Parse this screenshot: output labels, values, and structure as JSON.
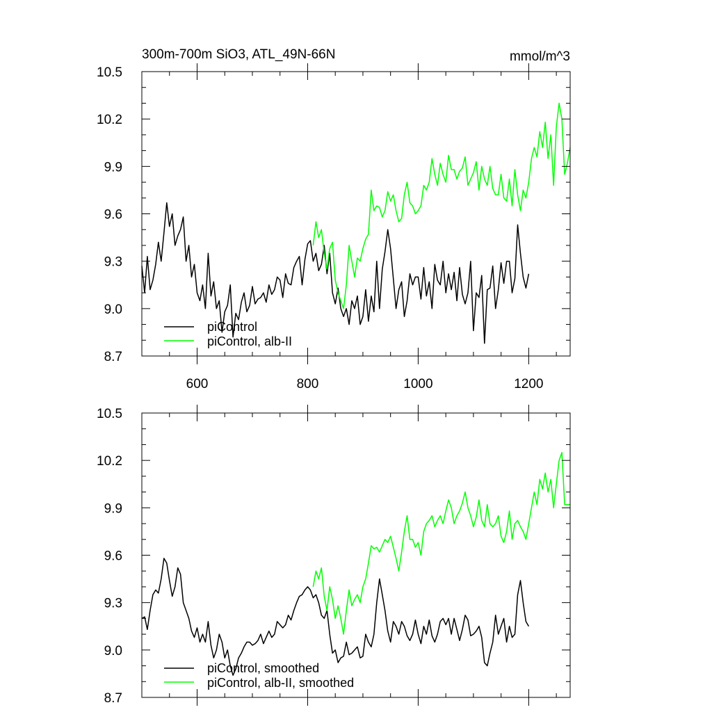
{
  "colors": {
    "series_black": "#000000",
    "series_green": "#00ff00",
    "axis": "#000000",
    "background": "#ffffff"
  },
  "chart_data": [
    {
      "type": "line",
      "title_left": "300m-700m SiO3, ATL_49N-66N",
      "title_right": "mmol/m^3",
      "xlabel": "",
      "ylabel": "",
      "xlim": [
        500,
        1275
      ],
      "ylim": [
        8.7,
        10.5
      ],
      "xticks": [
        600,
        800,
        1000,
        1200
      ],
      "xtick_labels": [
        "600",
        "800",
        "1000",
        "1200"
      ],
      "yticks": [
        8.7,
        9.0,
        9.3,
        9.6,
        9.9,
        10.2,
        10.5
      ],
      "ytick_labels": [
        "8.7",
        "9.0",
        "9.3",
        "9.6",
        "9.9",
        "10.2",
        "10.5"
      ],
      "grid": false,
      "legend_position": "bottom-left",
      "series": [
        {
          "name": "piControl",
          "color": "#000000",
          "x": [
            500,
            505,
            510,
            515,
            520,
            525,
            530,
            535,
            540,
            545,
            550,
            555,
            560,
            565,
            570,
            575,
            580,
            585,
            590,
            595,
            600,
            605,
            610,
            615,
            620,
            625,
            630,
            635,
            640,
            645,
            650,
            655,
            660,
            665,
            670,
            675,
            680,
            685,
            690,
            695,
            700,
            705,
            710,
            715,
            720,
            725,
            730,
            735,
            740,
            745,
            750,
            755,
            760,
            765,
            770,
            775,
            780,
            785,
            790,
            795,
            800,
            805,
            810,
            815,
            820,
            825,
            830,
            835,
            840,
            845,
            850,
            855,
            860,
            865,
            870,
            875,
            880,
            885,
            890,
            895,
            900,
            905,
            910,
            915,
            920,
            925,
            930,
            935,
            940,
            945,
            950,
            955,
            960,
            965,
            970,
            975,
            980,
            985,
            990,
            995,
            1000,
            1005,
            1010,
            1015,
            1020,
            1025,
            1030,
            1035,
            1040,
            1045,
            1050,
            1055,
            1060,
            1065,
            1070,
            1075,
            1080,
            1085,
            1090,
            1095,
            1100,
            1105,
            1110,
            1115,
            1120,
            1125,
            1130,
            1135,
            1140,
            1145,
            1150,
            1155,
            1160,
            1165,
            1170,
            1175,
            1180,
            1185,
            1190,
            1195,
            1200
          ],
          "y": [
            9.27,
            9.1,
            9.33,
            9.12,
            9.18,
            9.28,
            9.42,
            9.3,
            9.48,
            9.67,
            9.52,
            9.6,
            9.4,
            9.46,
            9.5,
            9.58,
            9.3,
            9.4,
            9.2,
            9.28,
            9.1,
            9.05,
            9.15,
            9.0,
            9.35,
            9.08,
            9.17,
            9.0,
            9.05,
            8.85,
            8.98,
            9.02,
            9.15,
            8.82,
            8.97,
            8.93,
            9.04,
            9.1,
            8.98,
            9.02,
            9.14,
            9.03,
            9.06,
            9.07,
            9.1,
            9.04,
            9.15,
            9.09,
            9.12,
            9.2,
            9.18,
            9.07,
            9.22,
            9.16,
            9.15,
            9.26,
            9.3,
            9.33,
            9.15,
            9.31,
            9.41,
            9.43,
            9.3,
            9.35,
            9.24,
            9.28,
            9.4,
            9.22,
            9.35,
            9.1,
            9.03,
            9.13,
            9.0,
            8.95,
            9.0,
            8.9,
            9.05,
            9.0,
            9.08,
            8.9,
            8.95,
            9.12,
            8.92,
            9.08,
            8.98,
            9.3,
            9.0,
            9.25,
            9.36,
            9.5,
            9.38,
            9.19,
            9.0,
            9.12,
            9.17,
            8.95,
            9.05,
            9.22,
            9.15,
            9.2,
            9.2,
            9.06,
            9.26,
            9.08,
            9.17,
            9.0,
            9.28,
            9.18,
            9.15,
            9.3,
            9.1,
            9.22,
            9.12,
            9.23,
            9.05,
            9.26,
            9.09,
            9.03,
            9.1,
            9.3,
            8.86,
            9.1,
            9.07,
            9.21,
            8.78,
            9.12,
            9.13,
            9.27,
            9.0,
            9.12,
            9.29,
            9.16,
            9.3,
            9.3,
            9.1,
            9.19,
            9.53,
            9.35,
            9.2,
            9.13,
            9.22
          ]
        },
        {
          "name": "piControl, alb-II",
          "color": "#00ff00",
          "x": [
            810,
            815,
            820,
            825,
            830,
            835,
            840,
            845,
            850,
            855,
            860,
            865,
            870,
            875,
            880,
            885,
            890,
            895,
            900,
            905,
            910,
            915,
            920,
            925,
            930,
            935,
            940,
            945,
            950,
            955,
            960,
            965,
            970,
            975,
            980,
            985,
            990,
            995,
            1000,
            1005,
            1010,
            1015,
            1020,
            1025,
            1030,
            1035,
            1040,
            1045,
            1050,
            1055,
            1060,
            1065,
            1070,
            1075,
            1080,
            1085,
            1090,
            1095,
            1100,
            1105,
            1110,
            1115,
            1120,
            1125,
            1130,
            1135,
            1140,
            1145,
            1150,
            1155,
            1160,
            1165,
            1170,
            1175,
            1180,
            1185,
            1190,
            1195,
            1200,
            1205,
            1210,
            1215,
            1220,
            1225,
            1230,
            1235,
            1240,
            1245,
            1250,
            1255,
            1260,
            1265,
            1270,
            1275
          ],
          "y": [
            9.4,
            9.55,
            9.45,
            9.5,
            9.35,
            9.25,
            9.38,
            9.42,
            9.18,
            9.1,
            9.05,
            9.0,
            9.15,
            9.4,
            9.3,
            9.2,
            9.32,
            9.3,
            9.38,
            9.44,
            9.47,
            9.75,
            9.62,
            9.65,
            9.64,
            9.58,
            9.62,
            9.74,
            9.68,
            9.72,
            9.62,
            9.55,
            9.57,
            9.72,
            9.8,
            9.67,
            9.65,
            9.6,
            9.62,
            9.65,
            9.78,
            9.75,
            9.8,
            9.95,
            9.85,
            9.78,
            9.92,
            9.85,
            9.8,
            9.97,
            9.88,
            9.88,
            9.82,
            9.87,
            9.89,
            9.96,
            9.78,
            9.82,
            9.86,
            9.93,
            9.75,
            9.9,
            9.82,
            9.78,
            9.9,
            9.76,
            9.72,
            9.72,
            9.85,
            9.7,
            9.68,
            9.82,
            9.65,
            9.88,
            9.72,
            9.62,
            9.75,
            9.7,
            9.8,
            9.95,
            10.02,
            9.96,
            10.12,
            10.02,
            10.18,
            9.95,
            10.1,
            9.78,
            10.15,
            10.3,
            10.2,
            9.85,
            9.92,
            10.02
          ]
        }
      ]
    },
    {
      "type": "line",
      "xlabel": "",
      "ylabel": "",
      "xlim": [
        500,
        1275
      ],
      "ylim": [
        8.7,
        10.5
      ],
      "xticks": [
        600,
        800,
        1000,
        1200
      ],
      "yticks": [
        8.7,
        9.0,
        9.3,
        9.6,
        9.9,
        10.2,
        10.5
      ],
      "ytick_labels": [
        "8.7",
        "9.0",
        "9.3",
        "9.6",
        "9.9",
        "10.2",
        "10.5"
      ],
      "grid": false,
      "legend_position": "bottom-left",
      "series": [
        {
          "name": "piControl, smoothed",
          "color": "#000000",
          "x": [
            500,
            505,
            510,
            515,
            520,
            525,
            530,
            535,
            540,
            545,
            550,
            555,
            560,
            565,
            570,
            575,
            580,
            585,
            590,
            595,
            600,
            605,
            610,
            615,
            620,
            625,
            630,
            635,
            640,
            645,
            650,
            655,
            660,
            665,
            670,
            675,
            680,
            685,
            690,
            695,
            700,
            705,
            710,
            715,
            720,
            725,
            730,
            735,
            740,
            745,
            750,
            755,
            760,
            765,
            770,
            775,
            780,
            785,
            790,
            795,
            800,
            805,
            810,
            815,
            820,
            825,
            830,
            835,
            840,
            845,
            850,
            855,
            860,
            865,
            870,
            875,
            880,
            885,
            890,
            895,
            900,
            905,
            910,
            915,
            920,
            925,
            930,
            935,
            940,
            945,
            950,
            955,
            960,
            965,
            970,
            975,
            980,
            985,
            990,
            995,
            1000,
            1005,
            1010,
            1015,
            1020,
            1025,
            1030,
            1035,
            1040,
            1045,
            1050,
            1055,
            1060,
            1065,
            1070,
            1075,
            1080,
            1085,
            1090,
            1095,
            1100,
            1105,
            1110,
            1115,
            1120,
            1125,
            1130,
            1135,
            1140,
            1145,
            1150,
            1155,
            1160,
            1165,
            1170,
            1175,
            1180,
            1185,
            1190,
            1195,
            1200
          ],
          "y": [
            9.2,
            9.21,
            9.13,
            9.25,
            9.35,
            9.38,
            9.36,
            9.45,
            9.58,
            9.55,
            9.44,
            9.34,
            9.4,
            9.52,
            9.48,
            9.3,
            9.25,
            9.2,
            9.12,
            9.08,
            9.14,
            9.05,
            9.1,
            9.05,
            9.18,
            9.03,
            8.95,
            9.0,
            9.1,
            9.05,
            8.95,
            9.0,
            8.9,
            8.84,
            8.88,
            8.95,
            8.98,
            9.02,
            9.05,
            9.05,
            9.03,
            9.04,
            9.06,
            9.1,
            9.04,
            9.08,
            9.12,
            9.08,
            9.1,
            9.18,
            9.16,
            9.14,
            9.16,
            9.22,
            9.19,
            9.25,
            9.3,
            9.34,
            9.35,
            9.38,
            9.4,
            9.38,
            9.33,
            9.35,
            9.3,
            9.22,
            9.2,
            9.25,
            9.1,
            8.98,
            9.0,
            8.92,
            8.95,
            8.96,
            9.05,
            8.97,
            8.98,
            9.0,
            9.02,
            8.95,
            8.96,
            9.1,
            9.05,
            9.02,
            9.1,
            9.3,
            9.45,
            9.35,
            9.25,
            9.12,
            9.05,
            9.18,
            9.15,
            9.1,
            9.18,
            9.15,
            9.09,
            9.06,
            9.1,
            9.19,
            9.1,
            9.04,
            9.15,
            9.1,
            9.19,
            9.09,
            9.05,
            9.1,
            9.18,
            9.2,
            9.16,
            9.2,
            9.1,
            9.2,
            9.13,
            9.06,
            9.13,
            9.22,
            9.19,
            9.09,
            9.1,
            9.12,
            9.15,
            9.08,
            8.92,
            8.9,
            8.98,
            9.05,
            9.22,
            9.1,
            9.15,
            9.2,
            9.05,
            9.15,
            9.08,
            9.1,
            9.35,
            9.44,
            9.3,
            9.18,
            9.15
          ]
        },
        {
          "name": "piControl, alb-II, smoothed",
          "color": "#00ff00",
          "x": [
            810,
            815,
            820,
            825,
            830,
            835,
            840,
            845,
            850,
            855,
            860,
            865,
            870,
            875,
            880,
            885,
            890,
            895,
            900,
            905,
            910,
            915,
            920,
            925,
            930,
            935,
            940,
            945,
            950,
            955,
            960,
            965,
            970,
            975,
            980,
            985,
            990,
            995,
            1000,
            1005,
            1010,
            1015,
            1020,
            1025,
            1030,
            1035,
            1040,
            1045,
            1050,
            1055,
            1060,
            1065,
            1070,
            1075,
            1080,
            1085,
            1090,
            1095,
            1100,
            1105,
            1110,
            1115,
            1120,
            1125,
            1130,
            1135,
            1140,
            1145,
            1150,
            1155,
            1160,
            1165,
            1170,
            1175,
            1180,
            1185,
            1190,
            1195,
            1200,
            1205,
            1210,
            1215,
            1220,
            1225,
            1230,
            1235,
            1240,
            1245,
            1250,
            1255,
            1260,
            1265,
            1270,
            1275
          ],
          "y": [
            9.4,
            9.5,
            9.45,
            9.52,
            9.34,
            9.25,
            9.4,
            9.32,
            9.2,
            9.28,
            9.2,
            9.1,
            9.25,
            9.38,
            9.28,
            9.32,
            9.35,
            9.3,
            9.4,
            9.45,
            9.55,
            9.66,
            9.64,
            9.65,
            9.62,
            9.66,
            9.7,
            9.68,
            9.72,
            9.65,
            9.58,
            9.5,
            9.62,
            9.75,
            9.85,
            9.7,
            9.7,
            9.65,
            9.68,
            9.6,
            9.75,
            9.8,
            9.82,
            9.85,
            9.78,
            9.82,
            9.85,
            9.8,
            9.88,
            9.95,
            9.9,
            9.8,
            9.85,
            9.88,
            9.93,
            10.0,
            9.9,
            9.85,
            9.78,
            9.84,
            9.95,
            9.82,
            9.78,
            9.92,
            9.8,
            9.78,
            9.8,
            9.85,
            9.72,
            9.68,
            9.75,
            9.88,
            9.7,
            9.8,
            9.82,
            9.78,
            9.75,
            9.7,
            9.8,
            9.9,
            10.0,
            9.92,
            10.08,
            10.02,
            10.12,
            10.0,
            10.08,
            9.9,
            10.05,
            10.2,
            10.25,
            9.92,
            9.92,
            9.92
          ]
        }
      ]
    }
  ],
  "legends": [
    [
      "piControl",
      "piControl, alb-II"
    ],
    [
      "piControl, smoothed",
      "piControl, alb-II, smoothed"
    ]
  ]
}
